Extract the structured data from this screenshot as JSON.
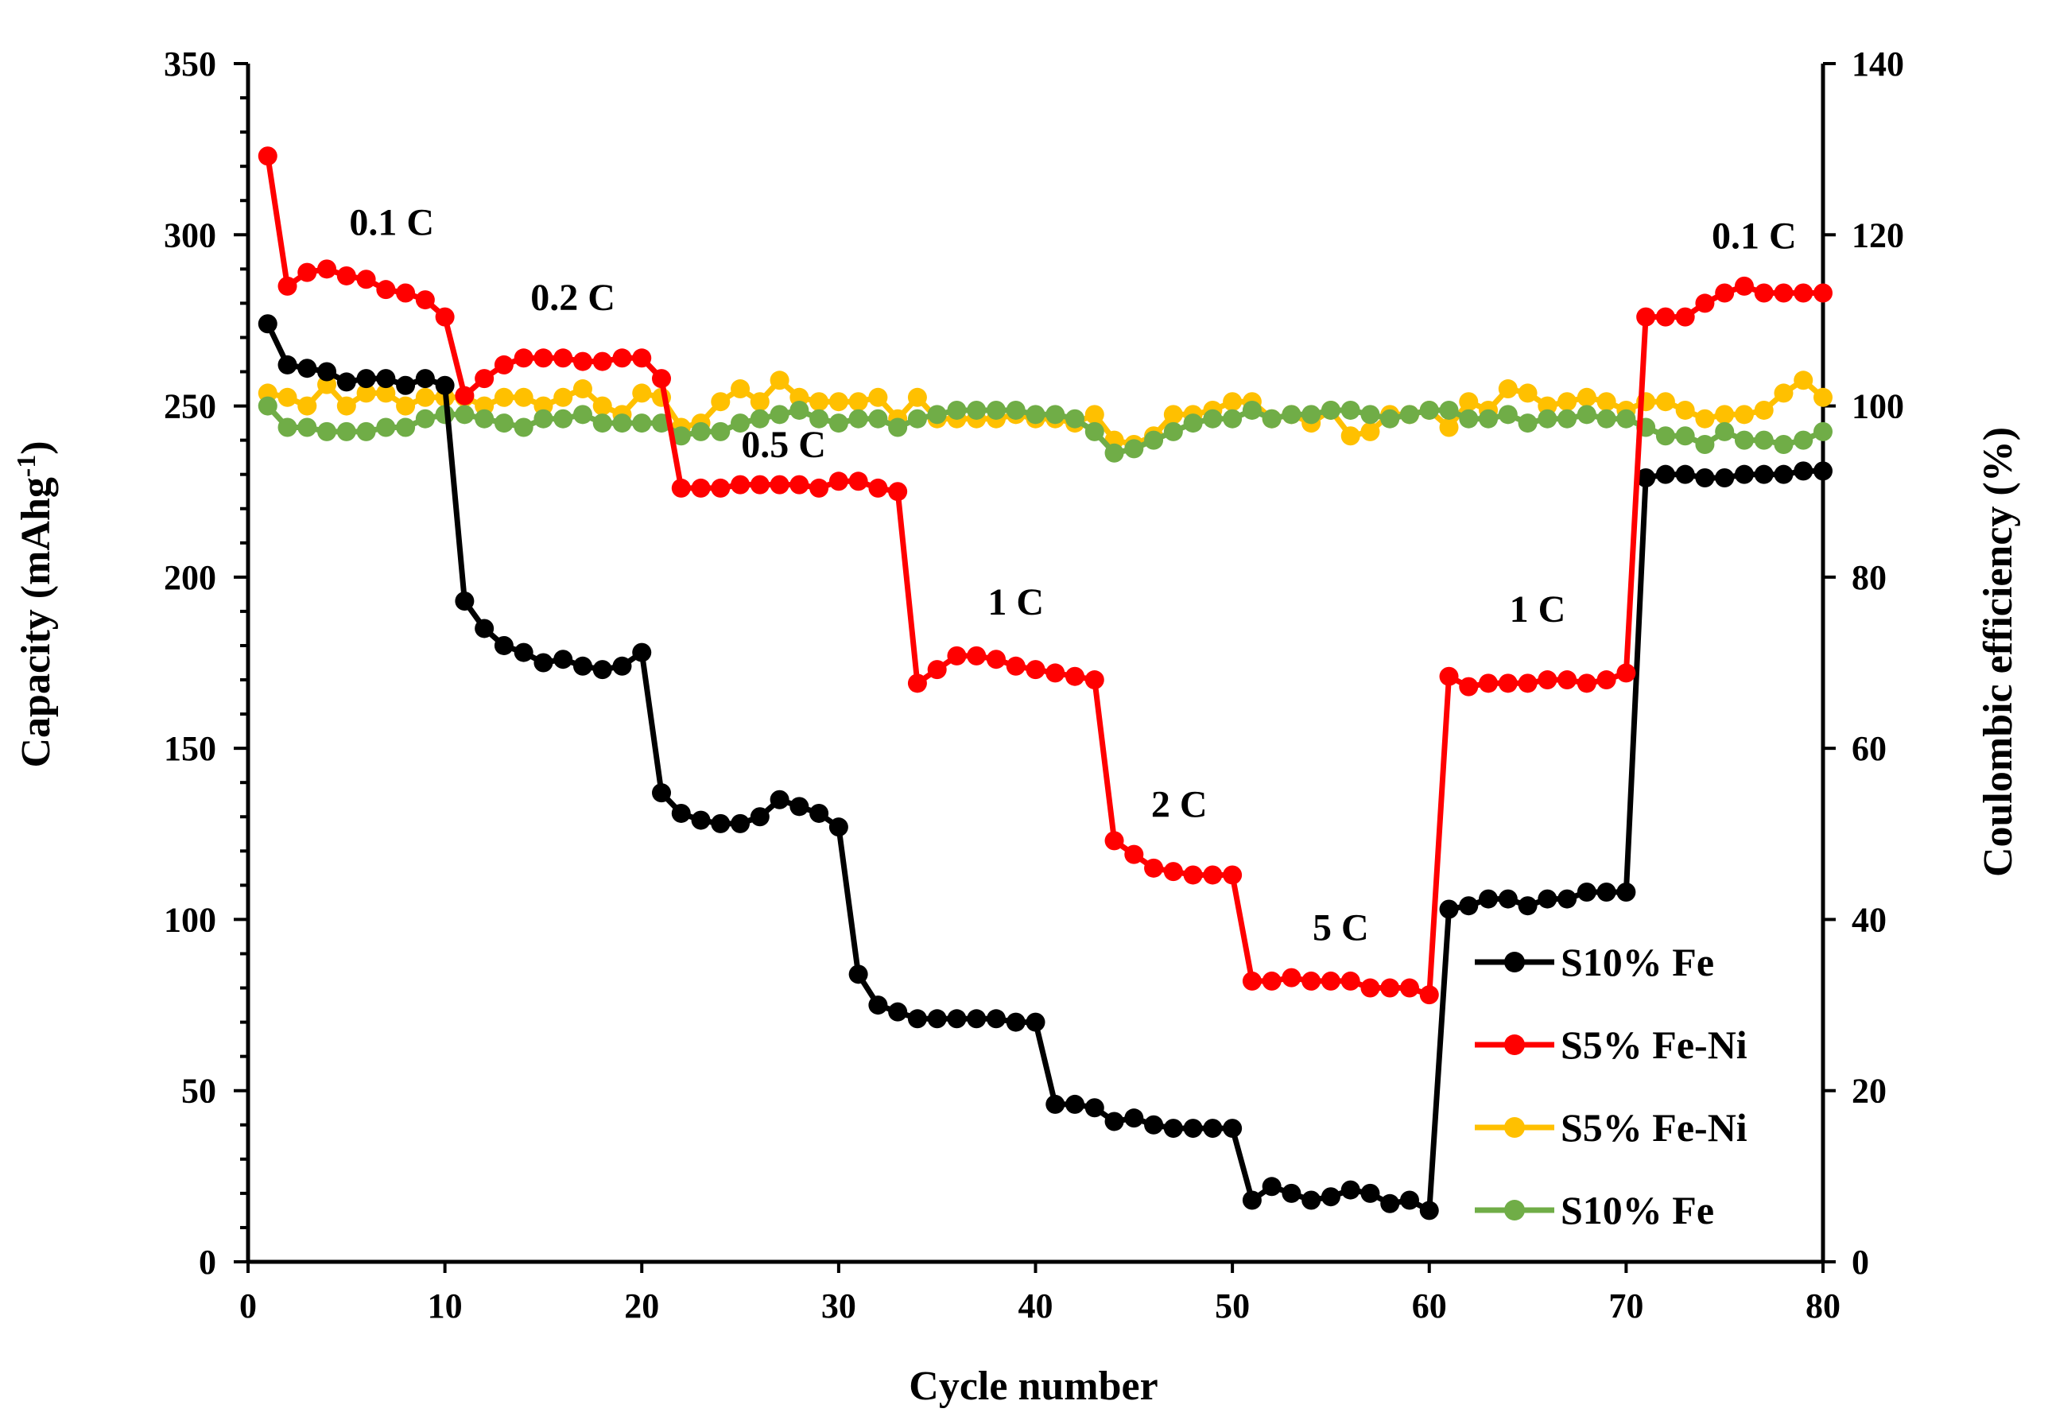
{
  "chart_data": {
    "type": "line",
    "title": "",
    "xlabel": "Cycle number",
    "ylabel": "Capacity (mAhg",
    "ylabel_sup": "-1",
    "ylabel_end": ")",
    "y2label": "Coulombic efficiency (%)",
    "xlim": [
      0,
      80
    ],
    "ylim": [
      0,
      350
    ],
    "y2lim": [
      0,
      140
    ],
    "xticks": [
      "0",
      "10",
      "20",
      "30",
      "40",
      "50",
      "60",
      "70",
      "80"
    ],
    "yticks": [
      "0",
      "50",
      "100",
      "150",
      "200",
      "250",
      "300",
      "350"
    ],
    "y2ticks": [
      "0",
      "20",
      "40",
      "60",
      "80",
      "100",
      "120",
      "140"
    ],
    "legend_position": "bottom-right",
    "colors": {
      "black": "#000000",
      "red": "#ff0000",
      "yellow": "#ffc000",
      "green": "#70ad47"
    },
    "annotations": [
      {
        "text": "0.1 C",
        "x": 7.3,
        "y": 300
      },
      {
        "text": "0.2 C",
        "x": 16.5,
        "y": 278
      },
      {
        "text": "0.5 C",
        "x": 27.2,
        "y": 235
      },
      {
        "text": "1 C",
        "x": 39,
        "y": 189
      },
      {
        "text": "2 C",
        "x": 47.3,
        "y": 130
      },
      {
        "text": "5 C",
        "x": 55.5,
        "y": 94
      },
      {
        "text": "1 C",
        "x": 65.5,
        "y": 187
      },
      {
        "text": "0.1 C",
        "x": 76.5,
        "y": 296
      }
    ],
    "series": [
      {
        "name": "S10% Fe",
        "axis": "left",
        "color": "#000000",
        "x": [
          1,
          2,
          3,
          4,
          5,
          6,
          7,
          8,
          9,
          10,
          11,
          12,
          13,
          14,
          15,
          16,
          17,
          18,
          19,
          20,
          21,
          22,
          23,
          24,
          25,
          26,
          27,
          28,
          29,
          30,
          31,
          32,
          33,
          34,
          35,
          36,
          37,
          38,
          39,
          40,
          41,
          42,
          43,
          44,
          45,
          46,
          47,
          48,
          49,
          50,
          51,
          52,
          53,
          54,
          55,
          56,
          57,
          58,
          59,
          60,
          61,
          62,
          63,
          64,
          65,
          66,
          67,
          68,
          69,
          70,
          71,
          72,
          73,
          74,
          75,
          76,
          77,
          78,
          79,
          80
        ],
        "values": [
          274,
          262,
          261,
          260,
          257,
          258,
          258,
          256,
          258,
          256,
          193,
          185,
          180,
          178,
          175,
          176,
          174,
          173,
          174,
          178,
          137,
          131,
          129,
          128,
          128,
          130,
          135,
          133,
          131,
          127,
          84,
          75,
          73,
          71,
          71,
          71,
          71,
          71,
          70,
          70,
          46,
          46,
          45,
          41,
          42,
          40,
          39,
          39,
          39,
          39,
          18,
          22,
          20,
          18,
          19,
          21,
          20,
          17,
          18,
          15,
          103,
          104,
          106,
          106,
          104,
          106,
          106,
          108,
          108,
          108,
          229,
          230,
          230,
          229,
          229,
          230,
          230,
          230,
          231,
          231
        ]
      },
      {
        "name": "S5% Fe-Ni",
        "axis": "left",
        "color": "#ff0000",
        "x": [
          1,
          2,
          3,
          4,
          5,
          6,
          7,
          8,
          9,
          10,
          11,
          12,
          13,
          14,
          15,
          16,
          17,
          18,
          19,
          20,
          21,
          22,
          23,
          24,
          25,
          26,
          27,
          28,
          29,
          30,
          31,
          32,
          33,
          34,
          35,
          36,
          37,
          38,
          39,
          40,
          41,
          42,
          43,
          44,
          45,
          46,
          47,
          48,
          49,
          50,
          51,
          52,
          53,
          54,
          55,
          56,
          57,
          58,
          59,
          60,
          61,
          62,
          63,
          64,
          65,
          66,
          67,
          68,
          69,
          70,
          71,
          72,
          73,
          74,
          75,
          76,
          77,
          78,
          79,
          80
        ],
        "values": [
          323,
          285,
          289,
          290,
          288,
          287,
          284,
          283,
          281,
          276,
          253,
          258,
          262,
          264,
          264,
          264,
          263,
          263,
          264,
          264,
          258,
          226,
          226,
          226,
          227,
          227,
          227,
          227,
          226,
          228,
          228,
          226,
          225,
          169,
          173,
          177,
          177,
          176,
          174,
          173,
          172,
          171,
          170,
          123,
          119,
          115,
          114,
          113,
          113,
          113,
          82,
          82,
          83,
          82,
          82,
          82,
          80,
          80,
          80,
          78,
          171,
          168,
          169,
          169,
          169,
          170,
          170,
          169,
          170,
          172,
          276,
          276,
          276,
          280,
          283,
          285,
          283,
          283,
          283,
          283
        ]
      },
      {
        "name": "S5% Fe-Ni",
        "axis": "right",
        "color": "#ffc000",
        "x": [
          1,
          2,
          3,
          4,
          5,
          6,
          7,
          8,
          9,
          10,
          11,
          12,
          13,
          14,
          15,
          16,
          17,
          18,
          19,
          20,
          21,
          22,
          23,
          24,
          25,
          26,
          27,
          28,
          29,
          30,
          31,
          32,
          33,
          34,
          35,
          36,
          37,
          38,
          39,
          40,
          41,
          42,
          43,
          44,
          45,
          46,
          47,
          48,
          49,
          50,
          51,
          52,
          53,
          54,
          55,
          56,
          57,
          58,
          59,
          60,
          61,
          62,
          63,
          64,
          65,
          66,
          67,
          68,
          69,
          70,
          71,
          72,
          73,
          74,
          75,
          76,
          77,
          78,
          79,
          80
        ],
        "values": [
          101.5,
          101,
          100,
          102.5,
          100,
          101.5,
          101.5,
          100,
          101,
          101,
          101,
          100,
          101,
          101,
          100,
          101,
          102,
          100,
          99,
          101.5,
          101,
          97.5,
          98,
          100.5,
          102,
          100.5,
          103,
          101,
          100.5,
          100.5,
          100.5,
          101,
          98.5,
          101,
          98.5,
          98.5,
          98.5,
          98.5,
          99,
          98.5,
          98.5,
          98,
          99,
          96,
          95.5,
          96.5,
          99,
          99,
          99.5,
          100.5,
          100.5,
          98.5,
          99,
          98,
          99.5,
          96.5,
          97,
          99,
          99,
          99.5,
          97.5,
          100.5,
          99.5,
          102,
          101.5,
          100,
          100.5,
          101,
          100.5,
          99.5,
          100.5,
          100.5,
          99.5,
          98.5,
          99,
          99,
          99.5,
          101.5,
          103,
          101
        ]
      },
      {
        "name": "S10% Fe",
        "axis": "right",
        "color": "#70ad47",
        "x": [
          1,
          2,
          3,
          4,
          5,
          6,
          7,
          8,
          9,
          10,
          11,
          12,
          13,
          14,
          15,
          16,
          17,
          18,
          19,
          20,
          21,
          22,
          23,
          24,
          25,
          26,
          27,
          28,
          29,
          30,
          31,
          32,
          33,
          34,
          35,
          36,
          37,
          38,
          39,
          40,
          41,
          42,
          43,
          44,
          45,
          46,
          47,
          48,
          49,
          50,
          51,
          52,
          53,
          54,
          55,
          56,
          57,
          58,
          59,
          60,
          61,
          62,
          63,
          64,
          65,
          66,
          67,
          68,
          69,
          70,
          71,
          72,
          73,
          74,
          75,
          76,
          77,
          78,
          79,
          80
        ],
        "values": [
          100,
          97.5,
          97.5,
          97,
          97,
          97,
          97.5,
          97.5,
          98.5,
          99,
          99,
          98.5,
          98,
          97.5,
          98.5,
          98.5,
          99,
          98,
          98,
          98,
          98,
          96.5,
          97,
          97,
          98,
          98.5,
          99,
          99.5,
          98.5,
          98,
          98.5,
          98.5,
          97.5,
          98.5,
          99,
          99.5,
          99.5,
          99.5,
          99.5,
          99,
          99,
          98.5,
          97,
          94.5,
          95,
          96,
          97,
          98,
          98.5,
          98.5,
          99.5,
          98.5,
          99,
          99,
          99.5,
          99.5,
          99,
          98.5,
          99,
          99.5,
          99.5,
          98.5,
          98.5,
          99,
          98,
          98.5,
          98.5,
          99,
          98.5,
          98.5,
          97.5,
          96.5,
          96.5,
          95.5,
          97,
          96,
          96,
          95.5,
          96,
          97
        ]
      }
    ]
  }
}
